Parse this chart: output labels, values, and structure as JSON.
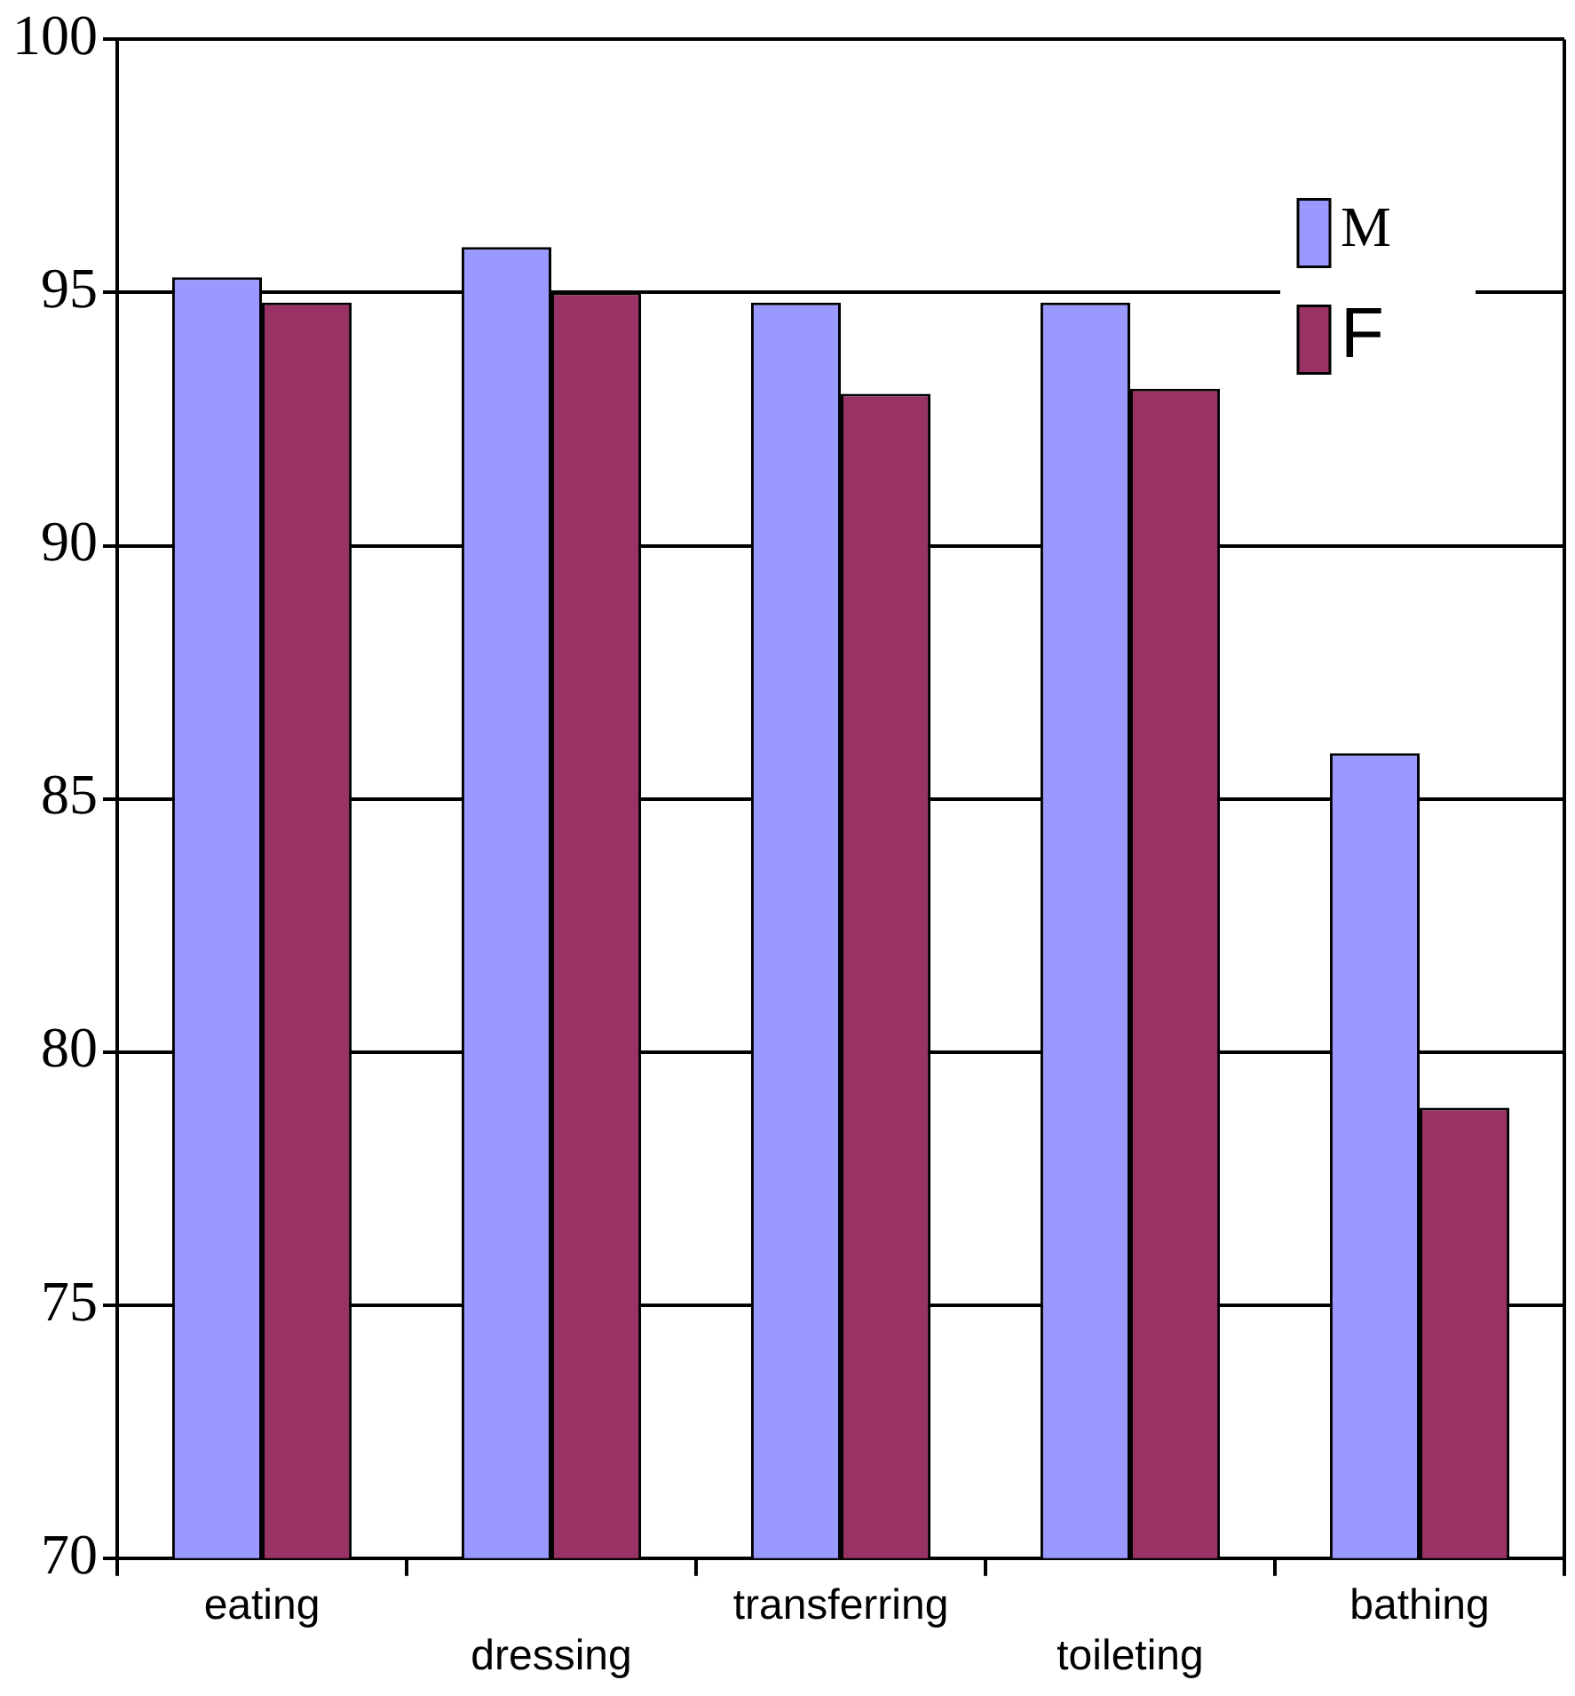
{
  "chart_data": {
    "type": "bar",
    "categories": [
      "eating",
      "dressing",
      "transferring",
      "toileting",
      "bathing"
    ],
    "series": [
      {
        "name": "M",
        "color": "#9999ff",
        "values": [
          95.3,
          95.9,
          94.8,
          94.8,
          85.9
        ]
      },
      {
        "name": "F",
        "color": "#993366",
        "values": [
          94.8,
          95.0,
          93.0,
          93.1,
          78.9
        ]
      }
    ],
    "ylim": [
      70,
      100
    ],
    "yticks": [
      70,
      75,
      80,
      85,
      90,
      95,
      100
    ],
    "grid": "y",
    "legend": "top right"
  }
}
